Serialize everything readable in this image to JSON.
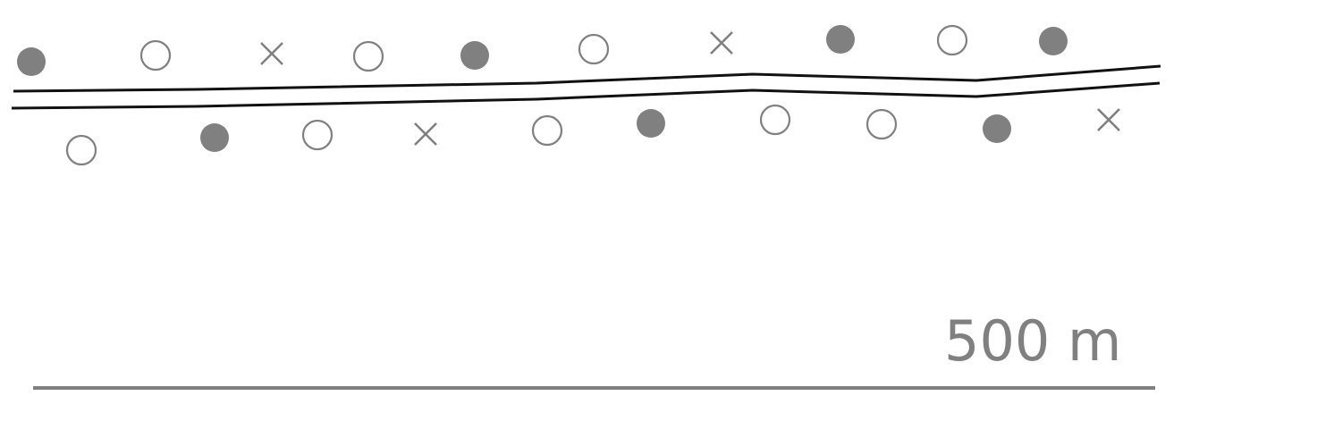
{
  "map": {
    "colors": {
      "road": "#111111",
      "marker_filled": "#808080",
      "marker_open": "#808080",
      "marker_cross": "#808080",
      "scale": "#808080"
    },
    "markers_north": [
      {
        "id": "n1",
        "type": "filled"
      },
      {
        "id": "n2",
        "type": "open"
      },
      {
        "id": "n3",
        "type": "cross"
      },
      {
        "id": "n4",
        "type": "open"
      },
      {
        "id": "n5",
        "type": "filled"
      },
      {
        "id": "n6",
        "type": "open"
      },
      {
        "id": "n7",
        "type": "cross"
      },
      {
        "id": "n8",
        "type": "filled"
      },
      {
        "id": "n9",
        "type": "open"
      },
      {
        "id": "n10",
        "type": "filled"
      }
    ],
    "markers_south": [
      {
        "id": "s1",
        "type": "open"
      },
      {
        "id": "s2",
        "type": "filled"
      },
      {
        "id": "s3",
        "type": "open"
      },
      {
        "id": "s4",
        "type": "cross"
      },
      {
        "id": "s5",
        "type": "open"
      },
      {
        "id": "s6",
        "type": "filled"
      },
      {
        "id": "s7",
        "type": "open"
      },
      {
        "id": "s8",
        "type": "open"
      },
      {
        "id": "s9",
        "type": "filled"
      },
      {
        "id": "s10",
        "type": "cross"
      }
    ]
  },
  "scale_bar": {
    "label": "500 m"
  }
}
